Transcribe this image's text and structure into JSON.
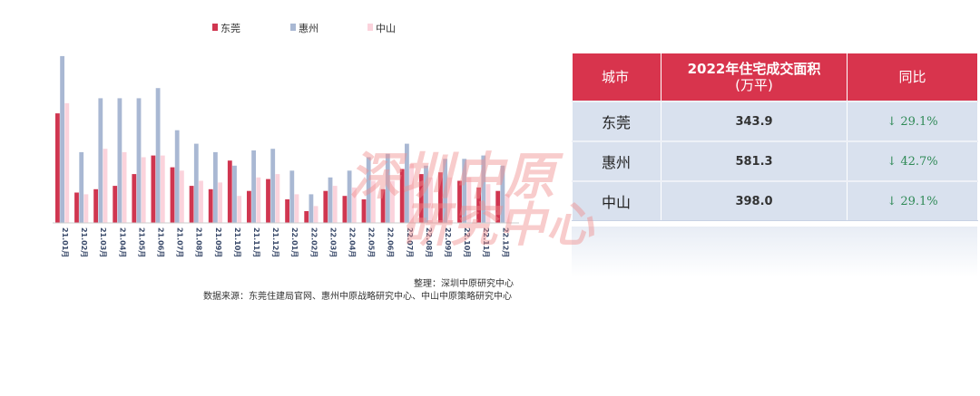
{
  "chart_data": {
    "type": "bar",
    "categories": [
      "21.01月",
      "21.02月",
      "21.03月",
      "21.04月",
      "21.05月",
      "21.06月",
      "21.07月",
      "21.08月",
      "21.09月",
      "21.10月",
      "21.11月",
      "21.12月",
      "22.01月",
      "22.02月",
      "22.03月",
      "22.04月",
      "22.05月",
      "22.06月",
      "22.07月",
      "22.08月",
      "22.09月",
      "22.10月",
      "22.11月",
      "22.12月"
    ],
    "series": [
      {
        "name": "东莞",
        "color": "#d03650",
        "values": [
          65,
          18,
          20,
          22,
          29,
          40,
          33,
          22,
          20,
          37,
          19,
          26,
          14,
          7,
          19,
          16,
          14,
          20,
          32,
          29,
          30,
          25,
          21,
          19
        ]
      },
      {
        "name": "惠州",
        "color": "#a9b8d3",
        "values": [
          99,
          42,
          74,
          74,
          74,
          80,
          55,
          47,
          42,
          34,
          43,
          44,
          31,
          17,
          27,
          31,
          39,
          41,
          47,
          34,
          38,
          38,
          40,
          34
        ]
      },
      {
        "name": "中山",
        "color": "#fbd3dc",
        "values": [
          71,
          17,
          44,
          42,
          39,
          40,
          31,
          25,
          24,
          16,
          27,
          29,
          17,
          10,
          22,
          21,
          25,
          25,
          35,
          27,
          27,
          27,
          23,
          17
        ]
      }
    ],
    "legend_position": "top"
  },
  "table": {
    "headers": [
      "城市",
      "2022年住宅成交面积",
      "(万平)",
      "同比"
    ],
    "rows": [
      {
        "city": "东莞",
        "area": "343.9",
        "yoy_arrow": "↓",
        "yoy": "29.1%"
      },
      {
        "city": "惠州",
        "area": "581.3",
        "yoy_arrow": "↓",
        "yoy": "42.7%"
      },
      {
        "city": "中山",
        "area": "398.0",
        "yoy_arrow": "↓",
        "yoy": "29.1%"
      }
    ]
  },
  "notes": {
    "compiler": "整理：深圳中原研究中心",
    "source": "数据来源：东莞住建局官网、惠州中原战略研究中心、中山中原策略研究中心"
  },
  "watermark": {
    "line1": "深圳中原",
    "line2": "研究中心"
  }
}
